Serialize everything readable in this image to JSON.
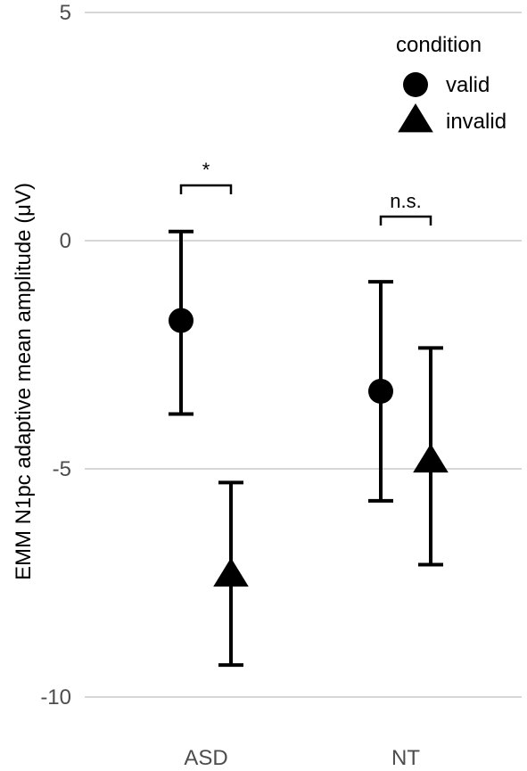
{
  "chart_data": {
    "type": "scatter",
    "ylabel": "EMM N1pc adaptive mean amplitude (μV)",
    "ylim": [
      -10,
      5
    ],
    "yticks": [
      5,
      0,
      -5,
      -10
    ],
    "categories": [
      "ASD",
      "NT"
    ],
    "grid": true,
    "legend": {
      "title": "condition",
      "position": "top-right"
    },
    "series": [
      {
        "name": "valid",
        "marker": "circle",
        "values": [
          -1.75,
          -3.3
        ],
        "lower": [
          -3.8,
          -5.7
        ],
        "upper": [
          0.2,
          -0.9
        ]
      },
      {
        "name": "invalid",
        "marker": "triangle",
        "values": [
          -7.3,
          -4.8
        ],
        "lower": [
          -9.3,
          -7.1
        ],
        "upper": [
          -5.3,
          -2.35
        ]
      }
    ],
    "significance": [
      {
        "category": "ASD",
        "label": "*"
      },
      {
        "category": "NT",
        "label": "n.s."
      }
    ]
  }
}
